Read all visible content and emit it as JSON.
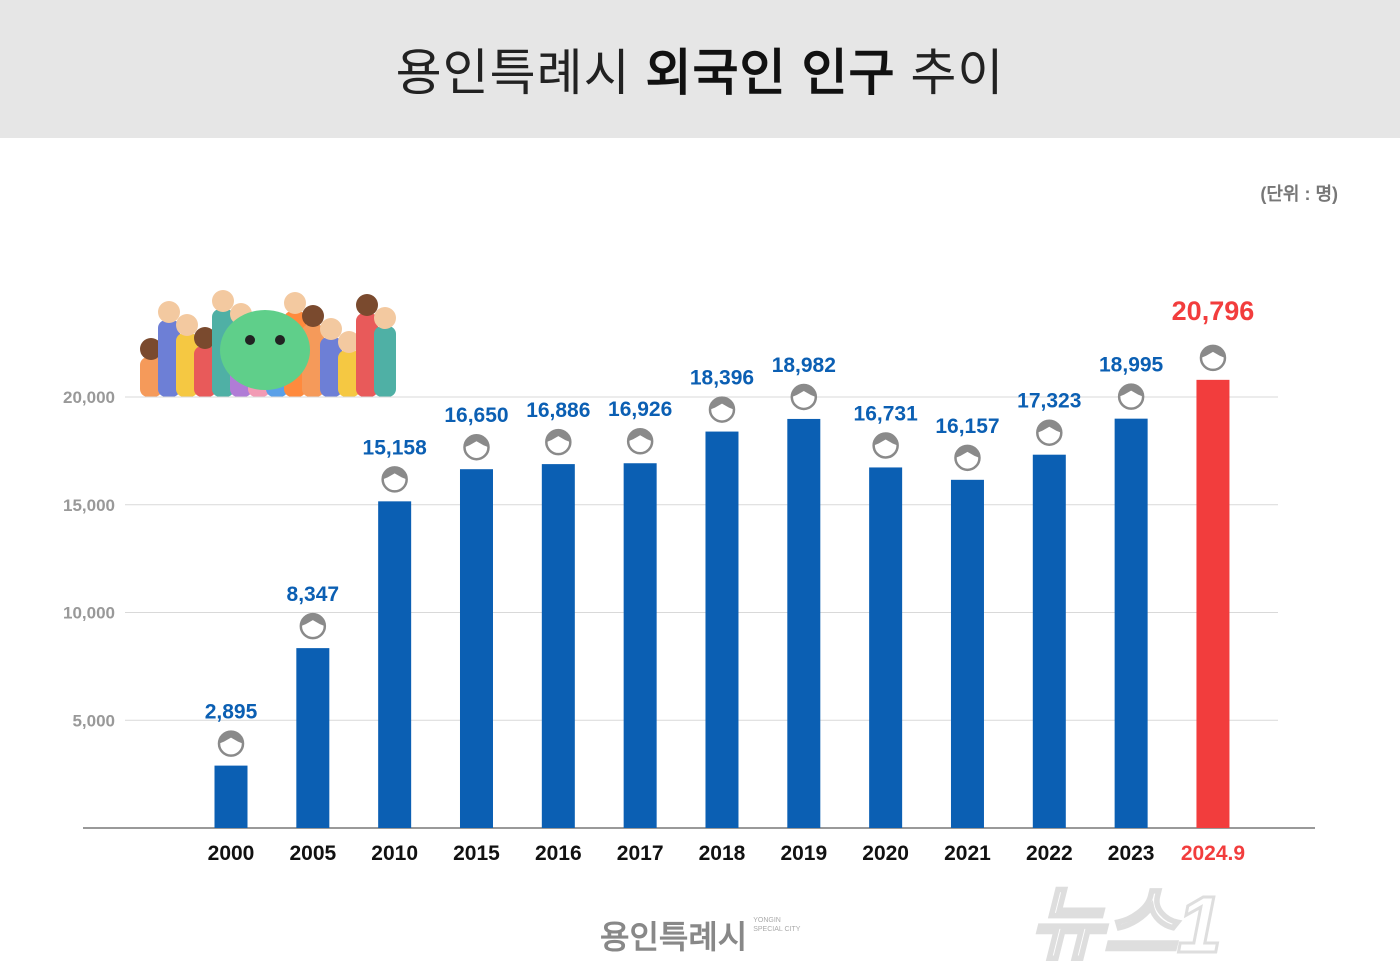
{
  "header": {
    "title_light": "용인특례시",
    "title_bold": "외국인 인구",
    "title_end": "추이"
  },
  "unit_label": "(단위 : 명)",
  "logo": {
    "text": "용인특례시",
    "sub": "YONGIN SPECIAL CITY"
  },
  "watermark": "뉴스1",
  "colors": {
    "bar": "#0b5fb3",
    "highlight": "#f23d3d",
    "label": "#0b5fb3",
    "grid": "#d9d9d9",
    "axis": "#999999",
    "header_bg": "#e6e6e6",
    "person_icon": "#8a8a8a"
  },
  "chart_data": {
    "type": "bar",
    "title": "용인특례시 외국인 인구 추이",
    "categories": [
      "2000",
      "2005",
      "2010",
      "2015",
      "2016",
      "2017",
      "2018",
      "2019",
      "2020",
      "2021",
      "2022",
      "2023",
      "2024.9"
    ],
    "values": [
      2895,
      8347,
      15158,
      16650,
      16886,
      16926,
      18396,
      18982,
      16731,
      16157,
      17323,
      18995,
      20796
    ],
    "value_labels": [
      "2,895",
      "8,347",
      "15,158",
      "16,650",
      "16,886",
      "16,926",
      "18,396",
      "18,982",
      "16,731",
      "16,157",
      "17,323",
      "18,995",
      "20,796"
    ],
    "highlight_index": 12,
    "ylim": [
      0,
      20000
    ],
    "yticks": [
      "5,000",
      "10,000",
      "15,000",
      "20,000"
    ],
    "ytick_values": [
      5000,
      10000,
      15000,
      20000
    ],
    "grid": true,
    "xlabel": "",
    "ylabel": ""
  }
}
